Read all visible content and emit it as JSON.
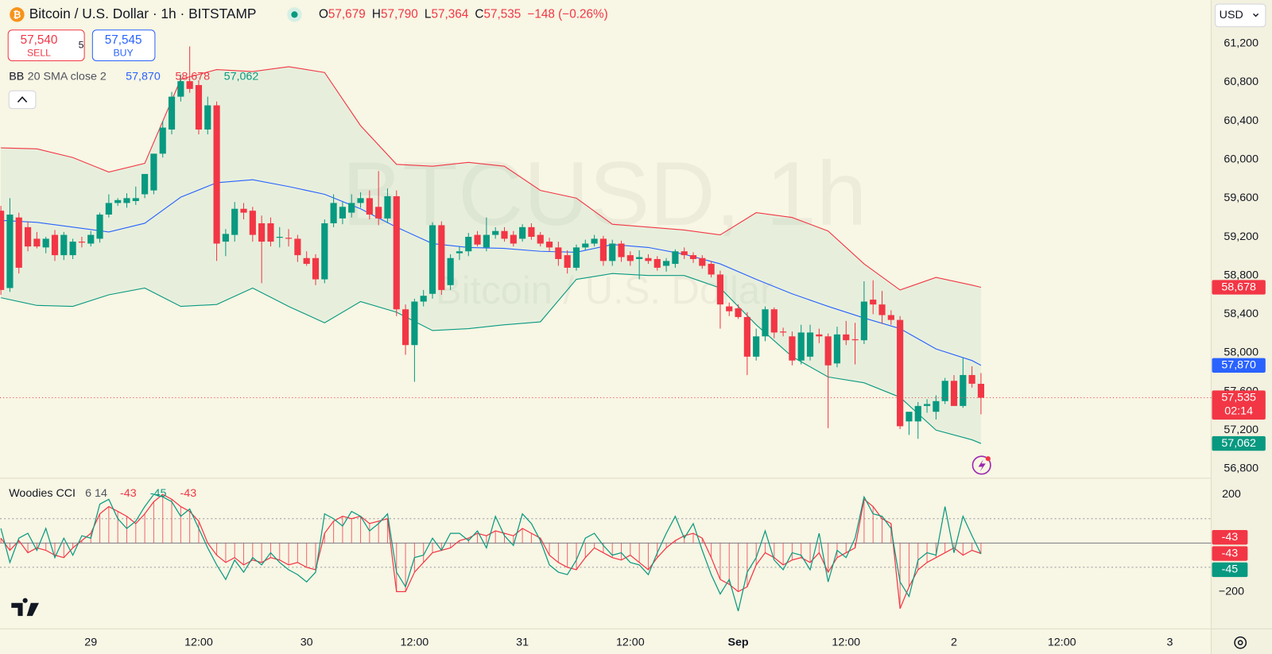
{
  "header": {
    "symbol": "Bitcoin / U.S. Dollar · 1h · BITSTAMP",
    "ohlc": [
      {
        "key": "O",
        "value": "57,679"
      },
      {
        "key": "H",
        "value": "57,790"
      },
      {
        "key": "L",
        "value": "57,364"
      },
      {
        "key": "C",
        "value": "57,535"
      }
    ],
    "change": "−148 (−0.26%)",
    "sell": {
      "price": "57,540",
      "label": "SELL"
    },
    "spread": "5",
    "buy": {
      "price": "57,545",
      "label": "BUY"
    },
    "currency": "USD",
    "watermark": "BTCUSD, 1h",
    "watermark_sub": "Bitcoin / U.S. Dollar",
    "indicator": {
      "name": "BB",
      "params": "20 SMA close 2",
      "values": [
        "57,870",
        "58,678",
        "57,062"
      ]
    }
  },
  "chart_data": [
    {
      "type": "candlestick",
      "up_color": "#089981",
      "down_color": "#f23645",
      "xlim": [
        -0.1,
        134.6
      ],
      "ylim": [
        56720,
        61650
      ],
      "xticks": [
        {
          "value": 10,
          "label": "29"
        },
        {
          "value": 22,
          "label": "12:00"
        },
        {
          "value": 34,
          "label": "30"
        },
        {
          "value": 46,
          "label": "12:00"
        },
        {
          "value": 58,
          "label": "31"
        },
        {
          "value": 70,
          "label": "12:00"
        },
        {
          "value": 82,
          "label": "Sep"
        },
        {
          "value": 94,
          "label": "12:00"
        },
        {
          "value": 106,
          "label": "2"
        },
        {
          "value": 118,
          "label": "12:00"
        },
        {
          "value": 130,
          "label": "3"
        }
      ],
      "yticks": [
        {
          "value": 56800,
          "label": "56,800"
        },
        {
          "value": 57200,
          "label": "57,200"
        },
        {
          "value": 57600,
          "label": "57,600"
        },
        {
          "value": 58000,
          "label": "58,000"
        },
        {
          "value": 58400,
          "label": "58,400"
        },
        {
          "value": 58800,
          "label": "58,800"
        },
        {
          "value": 59200,
          "label": "59,200"
        },
        {
          "value": 59600,
          "label": "59,600"
        },
        {
          "value": 60000,
          "label": "60,000"
        },
        {
          "value": 60400,
          "label": "60,400"
        },
        {
          "value": 60800,
          "label": "60,800"
        },
        {
          "value": 61200,
          "label": "61,200"
        }
      ],
      "candles": [
        [
          59470,
          59520,
          58600,
          58650
        ],
        [
          58670,
          59600,
          58630,
          59430
        ],
        [
          59400,
          59450,
          58820,
          58880
        ],
        [
          59300,
          59360,
          59050,
          59100
        ],
        [
          59180,
          59250,
          59080,
          59100
        ],
        [
          59090,
          59200,
          59030,
          59180
        ],
        [
          59220,
          59270,
          58950,
          59010
        ],
        [
          59010,
          59250,
          58960,
          59220
        ],
        [
          59010,
          59180,
          58970,
          59150
        ],
        [
          59150,
          59200,
          59090,
          59140
        ],
        [
          59130,
          59260,
          59100,
          59220
        ],
        [
          59180,
          59450,
          59140,
          59430
        ],
        [
          59430,
          59640,
          59400,
          59550
        ],
        [
          59550,
          59600,
          59520,
          59580
        ],
        [
          59550,
          59650,
          59500,
          59600
        ],
        [
          59570,
          59720,
          59530,
          59600
        ],
        [
          59640,
          59850,
          59600,
          59850
        ],
        [
          59680,
          60060,
          59640,
          60060
        ],
        [
          60060,
          60400,
          60020,
          60330
        ],
        [
          60310,
          60700,
          60260,
          60650
        ],
        [
          60650,
          60880,
          60600,
          60810
        ],
        [
          60810,
          61170,
          60690,
          60730
        ],
        [
          60770,
          60820,
          60260,
          60310
        ],
        [
          60310,
          60650,
          60260,
          60560
        ],
        [
          60560,
          60600,
          58950,
          59130
        ],
        [
          59150,
          59280,
          59000,
          59230
        ],
        [
          59220,
          59560,
          59150,
          59490
        ],
        [
          59490,
          59550,
          59380,
          59450
        ],
        [
          59470,
          59510,
          59150,
          59220
        ],
        [
          59340,
          59420,
          58720,
          59150
        ],
        [
          59340,
          59400,
          59100,
          59150
        ],
        [
          59190,
          59300,
          59090,
          59200
        ],
        [
          59190,
          59280,
          59100,
          59180
        ],
        [
          59180,
          59220,
          58940,
          59010
        ],
        [
          58980,
          59050,
          58900,
          58920
        ],
        [
          58980,
          59020,
          58700,
          58760
        ],
        [
          58760,
          59380,
          58720,
          59340
        ],
        [
          59340,
          59640,
          59300,
          59550
        ],
        [
          59390,
          59560,
          59330,
          59510
        ],
        [
          59450,
          59640,
          59400,
          59550
        ],
        [
          59550,
          59660,
          59500,
          59600
        ],
        [
          59600,
          59680,
          59380,
          59430
        ],
        [
          59510,
          59880,
          59320,
          59390
        ],
        [
          59390,
          59700,
          59340,
          59620
        ],
        [
          59620,
          59680,
          58380,
          58450
        ],
        [
          58450,
          58500,
          57980,
          58080
        ],
        [
          58080,
          58560,
          57700,
          58530
        ],
        [
          58530,
          58650,
          58480,
          58590
        ],
        [
          58610,
          59350,
          58560,
          59320
        ],
        [
          59320,
          59360,
          58600,
          58650
        ],
        [
          58700,
          59020,
          58650,
          58980
        ],
        [
          59030,
          59100,
          58960,
          59050
        ],
        [
          59050,
          59240,
          59000,
          59200
        ],
        [
          59220,
          59260,
          59100,
          59120
        ],
        [
          59090,
          59400,
          59050,
          59220
        ],
        [
          59220,
          59300,
          59180,
          59260
        ],
        [
          59260,
          59300,
          59150,
          59180
        ],
        [
          59220,
          59260,
          59100,
          59130
        ],
        [
          59180,
          59330,
          59150,
          59300
        ],
        [
          59300,
          59340,
          59170,
          59200
        ],
        [
          59220,
          59250,
          59100,
          59130
        ],
        [
          59150,
          59190,
          59050,
          59090
        ],
        [
          59090,
          59150,
          58900,
          58970
        ],
        [
          59010,
          59060,
          58820,
          58880
        ],
        [
          58880,
          59120,
          58850,
          59090
        ],
        [
          59090,
          59170,
          59060,
          59130
        ],
        [
          59130,
          59220,
          59100,
          59180
        ],
        [
          59180,
          59210,
          58900,
          58950
        ],
        [
          58950,
          59170,
          58900,
          59130
        ],
        [
          59130,
          59160,
          58940,
          58990
        ],
        [
          59010,
          59050,
          58900,
          58950
        ],
        [
          58970,
          59060,
          58760,
          58990
        ],
        [
          58980,
          59020,
          58920,
          58950
        ],
        [
          58970,
          59000,
          58850,
          58880
        ],
        [
          58900,
          58980,
          58840,
          58950
        ],
        [
          58920,
          59070,
          58880,
          59050
        ],
        [
          59050,
          59090,
          58970,
          59010
        ],
        [
          59010,
          59040,
          58930,
          58970
        ],
        [
          58980,
          59010,
          58870,
          58900
        ],
        [
          58920,
          58950,
          58780,
          58810
        ],
        [
          58810,
          58850,
          58250,
          58500
        ],
        [
          58480,
          58520,
          58380,
          58430
        ],
        [
          58460,
          58500,
          58350,
          58370
        ],
        [
          58370,
          58420,
          57770,
          57960
        ],
        [
          57960,
          58250,
          57920,
          58170
        ],
        [
          58170,
          58480,
          58120,
          58450
        ],
        [
          58450,
          58470,
          58150,
          58210
        ],
        [
          58220,
          58260,
          58170,
          58210
        ],
        [
          58170,
          58220,
          57870,
          57920
        ],
        [
          57920,
          58290,
          57880,
          58210
        ],
        [
          57960,
          58290,
          57920,
          58210
        ],
        [
          58190,
          58250,
          58100,
          58170
        ],
        [
          58170,
          58200,
          57220,
          57870
        ],
        [
          57890,
          58270,
          57850,
          58190
        ],
        [
          58190,
          58330,
          58080,
          58130
        ],
        [
          58140,
          58310,
          57880,
          58130
        ],
        [
          58130,
          58740,
          58090,
          58530
        ],
        [
          58550,
          58750,
          58400,
          58500
        ],
        [
          58500,
          58640,
          58300,
          58390
        ],
        [
          58390,
          58440,
          58290,
          58340
        ],
        [
          58340,
          58380,
          57210,
          57240
        ],
        [
          57290,
          57380,
          57150,
          57390
        ],
        [
          57290,
          57490,
          57110,
          57450
        ],
        [
          57450,
          57520,
          57380,
          57470
        ],
        [
          57390,
          57560,
          57310,
          57500
        ],
        [
          57500,
          57740,
          57470,
          57710
        ],
        [
          57710,
          57770,
          57450,
          57450
        ],
        [
          57450,
          57950,
          57430,
          57770
        ],
        [
          57770,
          57860,
          57640,
          57680
        ],
        [
          57679,
          57790,
          57364,
          57535
        ]
      ],
      "bands": {
        "fill": "rgba(8,153,129,0.07)",
        "x": [
          0,
          4,
          8,
          12,
          16,
          20,
          24,
          28,
          32,
          36,
          40,
          44,
          48,
          52,
          56,
          60,
          64,
          68,
          72,
          76,
          80,
          84,
          88,
          92,
          96,
          100,
          104,
          108,
          109
        ],
        "upper": {
          "color": "#f23645",
          "values": [
            60120,
            60110,
            60020,
            59870,
            59960,
            60830,
            60930,
            60910,
            60960,
            60900,
            60350,
            59950,
            59930,
            59970,
            59930,
            59680,
            59600,
            59330,
            59300,
            59270,
            59220,
            59450,
            59400,
            59260,
            58920,
            58650,
            58780,
            58700,
            58678
          ]
        },
        "basis": {
          "color": "#2962ff",
          "values": [
            59370,
            59350,
            59300,
            59250,
            59340,
            59610,
            59760,
            59790,
            59720,
            59640,
            59490,
            59300,
            59130,
            59090,
            59080,
            59050,
            59040,
            59120,
            59090,
            59020,
            58920,
            58760,
            58610,
            58480,
            58360,
            58250,
            58040,
            57920,
            57870
          ]
        },
        "lower": {
          "color": "#089981",
          "values": [
            58570,
            58490,
            58480,
            58600,
            58670,
            58480,
            58500,
            58670,
            58480,
            58310,
            58530,
            58420,
            58230,
            58250,
            58290,
            58320,
            58760,
            58820,
            58800,
            58800,
            58670,
            58290,
            57960,
            57750,
            57690,
            57540,
            57200,
            57100,
            57062
          ]
        }
      },
      "price_labels": [
        {
          "value": 58678,
          "label": "58,678",
          "color": "#f23645"
        },
        {
          "value": 57870,
          "label": "57,870",
          "color": "#2962ff"
        },
        {
          "value": 57535,
          "label": "57,535",
          "sublabel": "02:14",
          "color": "#f23645"
        },
        {
          "value": 57062,
          "label": "57,062",
          "color": "#089981"
        }
      ]
    },
    {
      "type": "line",
      "title": "Woodies CCI",
      "params": "6 14",
      "ylim": [
        -350,
        267
      ],
      "yticks": [
        200,
        {
          "value": -200,
          "label": "−200"
        }
      ],
      "levels": [
        100,
        -100
      ],
      "zero_color": "#787b86",
      "histogram_color": "rgba(242,54,69,0.75)",
      "series": [
        {
          "color": "#f23645",
          "values": [
            20,
            -30,
            10,
            -40,
            -20,
            -30,
            -50,
            -60,
            -20,
            10,
            40,
            120,
            150,
            130,
            110,
            80,
            120,
            170,
            200,
            180,
            150,
            130,
            90,
            0,
            -50,
            -80,
            -60,
            -90,
            -70,
            -80,
            -60,
            -70,
            -90,
            -80,
            -100,
            -110,
            40,
            90,
            110,
            100,
            110,
            80,
            90,
            100,
            -200,
            -200,
            -120,
            -80,
            -40,
            -30,
            -20,
            10,
            20,
            40,
            30,
            50,
            40,
            30,
            60,
            40,
            20,
            -50,
            -80,
            -100,
            -110,
            -60,
            -20,
            -40,
            -60,
            -70,
            -50,
            -80,
            -110,
            -60,
            -20,
            10,
            30,
            40,
            20,
            -60,
            -150,
            -170,
            -200,
            -180,
            -90,
            -40,
            -60,
            -90,
            -70,
            -60,
            -80,
            -40,
            -120,
            -60,
            -40,
            -20,
            180,
            150,
            100,
            80,
            -270,
            -180,
            -110,
            -80,
            -60,
            -40,
            -20,
            -50,
            -30,
            -43
          ]
        },
        {
          "color": "#089981",
          "values": [
            60,
            -80,
            20,
            40,
            -30,
            60,
            -60,
            20,
            -50,
            30,
            20,
            160,
            180,
            100,
            60,
            90,
            150,
            200,
            190,
            170,
            110,
            140,
            60,
            -20,
            -90,
            -150,
            -70,
            -120,
            -60,
            -90,
            -40,
            -80,
            -110,
            -130,
            -160,
            -120,
            120,
            100,
            70,
            130,
            110,
            50,
            80,
            120,
            -120,
            -180,
            -60,
            -50,
            20,
            -30,
            40,
            40,
            10,
            50,
            -20,
            110,
            30,
            -10,
            120,
            80,
            10,
            -90,
            -120,
            -130,
            -70,
            20,
            40,
            -10,
            -50,
            -40,
            -80,
            -90,
            -130,
            -40,
            40,
            110,
            20,
            80,
            -30,
            -130,
            -210,
            -150,
            -280,
            -120,
            -60,
            50,
            -70,
            -110,
            -40,
            -50,
            -110,
            40,
            -160,
            -30,
            -60,
            20,
            190,
            120,
            110,
            60,
            -160,
            -220,
            -70,
            -40,
            -50,
            150,
            -40,
            110,
            30,
            -45
          ]
        }
      ]
    }
  ]
}
